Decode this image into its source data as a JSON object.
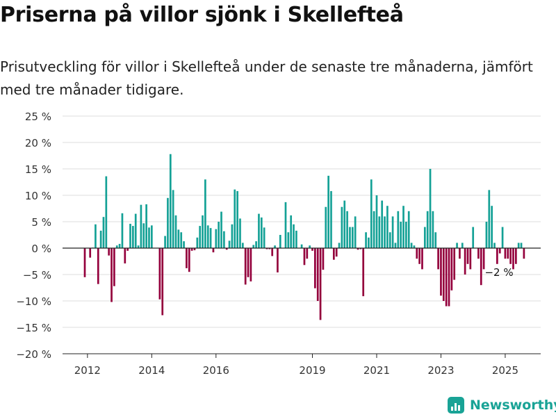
{
  "title": "Priserna på villor sjönk i Skellefteå",
  "subtitle": "Prisutveckling för villor i Skellefteå under de senaste tre månaderna, jämfört med tre månader tidigare.",
  "brand": {
    "name": "Newsworthy",
    "icon": "newsworthy-logo-icon",
    "color": "#19a396"
  },
  "chart_data": {
    "type": "bar",
    "x_start": "2011-12",
    "x_step": "month",
    "xlabel": "",
    "ylabel": "",
    "ylim": [
      -20,
      25
    ],
    "y_ticks": [
      25,
      20,
      15,
      10,
      5,
      0,
      -5,
      -10,
      -15,
      -20
    ],
    "y_tick_labels": [
      "25 %",
      "20 %",
      "15 %",
      "10 %",
      "5 %",
      "0 %",
      "−5 %",
      "−10 %",
      "−15 %",
      "−20 %"
    ],
    "x_ticks": [
      {
        "label": "2012",
        "x": "2012-01"
      },
      {
        "label": "2014",
        "x": "2014-01"
      },
      {
        "label": "2016",
        "x": "2016-01"
      },
      {
        "label": "2019",
        "x": "2019-01"
      },
      {
        "label": "2021",
        "x": "2021-01"
      },
      {
        "label": "2023",
        "x": "2023-01"
      },
      {
        "label": "2025",
        "x": "2025-01"
      }
    ],
    "grid": true,
    "positive_color": "#14a196",
    "negative_color": "#94003c",
    "annotation": {
      "text": "−2 %",
      "x": "2025-03"
    },
    "values": [
      -5.5,
      0,
      -1.8,
      0.1,
      4.5,
      -6.8,
      3.3,
      5.9,
      13.6,
      -1.4,
      -10.2,
      -7.2,
      0.5,
      0.8,
      6.6,
      -2.9,
      -0.5,
      4.6,
      4.2,
      6.5,
      0.5,
      8.2,
      4.7,
      8.3,
      3.9,
      4.3,
      0,
      0,
      -9.7,
      -12.7,
      2.3,
      9.5,
      17.8,
      11.0,
      6.2,
      3.5,
      3.0,
      1.3,
      -3.8,
      -4.5,
      -0.5,
      -0.4,
      2.0,
      4.2,
      6.2,
      13.0,
      4.3,
      3.8,
      -0.8,
      3.6,
      5.0,
      6.9,
      3.2,
      -0.3,
      1.4,
      4.5,
      11.1,
      10.8,
      5.6,
      1.0,
      -6.9,
      -5.5,
      -6.3,
      0.6,
      1.3,
      6.5,
      5.8,
      3.9,
      -0.2,
      -0.2,
      -1.5,
      0.5,
      -4.6,
      2.5,
      0,
      8.7,
      3.0,
      6.2,
      4.5,
      3.3,
      0,
      0.7,
      -3.2,
      -2.0,
      0.5,
      -0.5,
      -7.6,
      -10.0,
      -13.6,
      -4.1,
      7.8,
      13.7,
      10.8,
      -2.2,
      -1.6,
      1.0,
      7.8,
      9.0,
      7.0,
      4.0,
      4.0,
      6.0,
      -0.3,
      -0.2,
      -9.1,
      3.0,
      2.0,
      13.0,
      7.0,
      10.0,
      6.0,
      9.0,
      6.0,
      8.0,
      3.0,
      6.0,
      1.0,
      7.0,
      5.0,
      8.0,
      5.0,
      7.0,
      1.0,
      0.5,
      -2.0,
      -3.0,
      -4.0,
      4.0,
      7.0,
      15.0,
      7.0,
      3.0,
      -4.0,
      -9.0,
      -10.0,
      -11.0,
      -11.0,
      -8.0,
      -6.0,
      1.0,
      -2.0,
      1.0,
      -5.0,
      -3.0,
      -4.0,
      4.0,
      0,
      -2.0,
      -7.0,
      -4.0,
      5.0,
      11.0,
      8.0,
      1.0,
      -3.0,
      -1.0,
      4.0,
      -2.0,
      -2.0,
      -3.0,
      -4.0,
      -3.0,
      1.0,
      1.0,
      -2.0
    ]
  }
}
